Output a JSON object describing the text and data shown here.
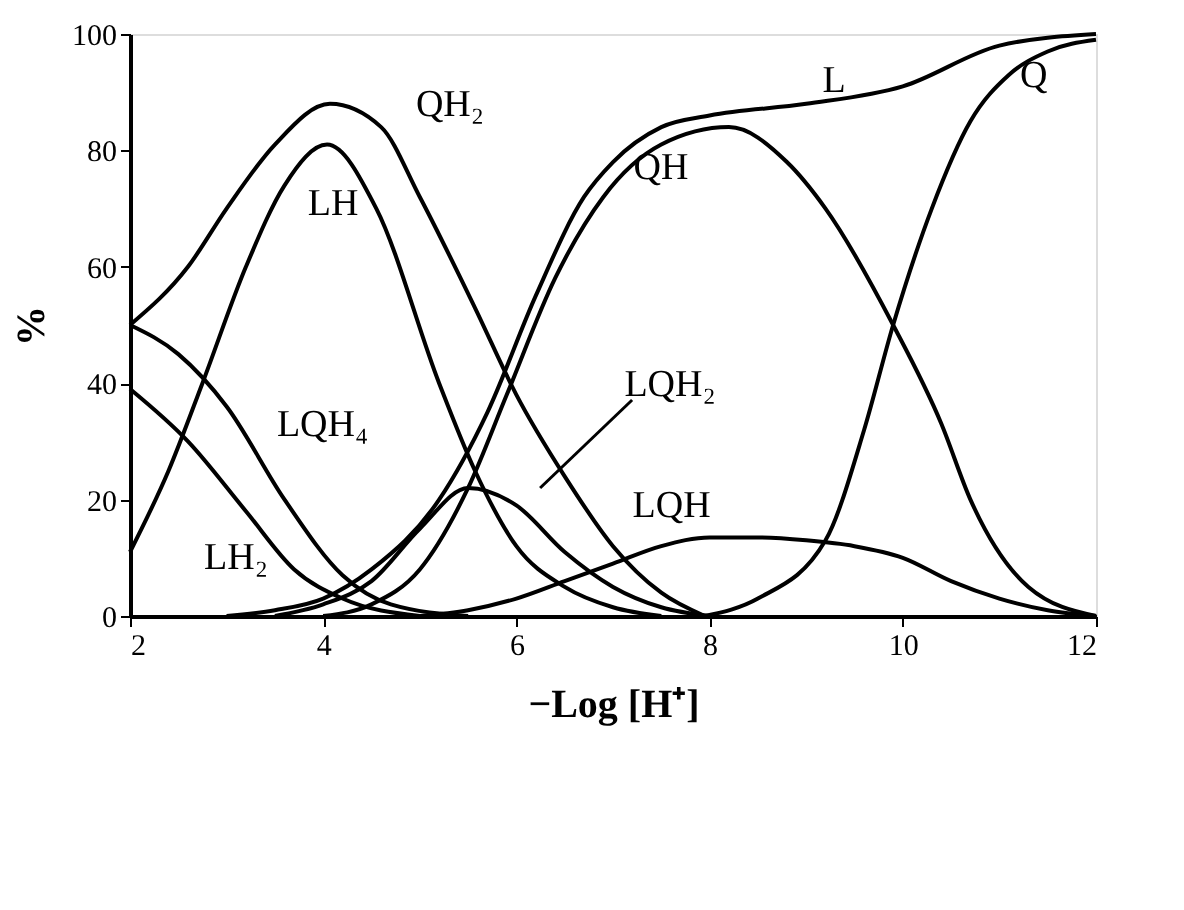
{
  "chart_data": {
    "type": "line",
    "xlabel": "−Log [H⁺]",
    "ylabel": "%",
    "xlim": [
      2,
      12
    ],
    "ylim": [
      0,
      100
    ],
    "xticks": [
      2,
      4,
      6,
      8,
      10,
      12
    ],
    "yticks": [
      0,
      20,
      40,
      60,
      80,
      100
    ],
    "grid": false,
    "marker": "none",
    "line_style": "solid",
    "series": [
      {
        "name": "QH₂",
        "color": "#000000",
        "x": [
          2,
          2.6,
          3.0,
          3.5,
          4.07,
          4.6,
          5.0,
          5.57,
          6.0,
          6.5,
          7.0,
          7.5,
          7.95
        ],
        "values": [
          50,
          60,
          70,
          81,
          88,
          84,
          72,
          53,
          38,
          24,
          12,
          4,
          0
        ]
      },
      {
        "name": "LH",
        "color": "#000000",
        "x": [
          2,
          2.4,
          2.75,
          3.2,
          3.6,
          4.04,
          4.55,
          5.2,
          5.57,
          6.0,
          6.5,
          7.0,
          7.5
        ],
        "values": [
          11,
          25,
          40,
          60,
          74,
          81,
          70,
          40,
          25,
          12,
          5,
          1.5,
          0
        ]
      },
      {
        "name": "LQH₄",
        "color": "#000000",
        "x": [
          2,
          2.5,
          3.0,
          3.6,
          4.2,
          4.7,
          5.5
        ],
        "values": [
          50,
          45,
          36,
          20,
          7,
          2,
          0
        ]
      },
      {
        "name": "LH₂",
        "color": "#000000",
        "x": [
          2,
          2.6,
          3.2,
          3.7,
          4.2,
          5.0
        ],
        "values": [
          39,
          30,
          18,
          8,
          3,
          0
        ]
      },
      {
        "name": "LQH₂",
        "color": "#000000",
        "x": [
          3.5,
          4.0,
          4.5,
          5.0,
          5.5,
          6.0,
          6.5,
          7.0,
          7.5,
          8.0
        ],
        "values": [
          0,
          2,
          6,
          15,
          22,
          19,
          11,
          5,
          1.5,
          0
        ]
      },
      {
        "name": "LQH",
        "color": "#000000",
        "x": [
          5.0,
          5.5,
          6.0,
          6.5,
          7.0,
          7.5,
          8.0,
          8.5,
          9.0,
          9.5,
          10.0,
          10.5,
          11.0,
          11.5,
          12.0
        ],
        "values": [
          0,
          1,
          3,
          6,
          9,
          12,
          13.5,
          13.5,
          13,
          12,
          10,
          6,
          3,
          1,
          0
        ]
      },
      {
        "name": "L",
        "color": "#000000",
        "x": [
          3.0,
          3.5,
          4.0,
          4.5,
          5.2,
          5.7,
          6.2,
          6.7,
          7.0,
          7.5,
          8.0,
          9.0,
          10.0,
          11.0,
          12.0
        ],
        "values": [
          0,
          1,
          3,
          8,
          20,
          35,
          55,
          72,
          78,
          84,
          86,
          88,
          91,
          98,
          100
        ]
      },
      {
        "name": "QH",
        "color": "#000000",
        "x": [
          4.0,
          4.5,
          5.0,
          5.5,
          5.9,
          6.4,
          6.9,
          7.5,
          8.2,
          8.8,
          9.2,
          9.9,
          10.4,
          10.7,
          11.3,
          12.0
        ],
        "values": [
          0,
          2,
          8,
          22,
          38,
          58,
          72,
          81,
          84,
          78,
          70,
          50,
          33,
          20,
          5,
          0
        ]
      },
      {
        "name": "Q",
        "color": "#000000",
        "x": [
          7.95,
          8.5,
          9.2,
          9.6,
          9.9,
          10.3,
          10.7,
          11.1,
          11.5,
          12.0
        ],
        "values": [
          0,
          3,
          13,
          32,
          50,
          70,
          85,
          93,
          97,
          99
        ]
      }
    ]
  }
}
